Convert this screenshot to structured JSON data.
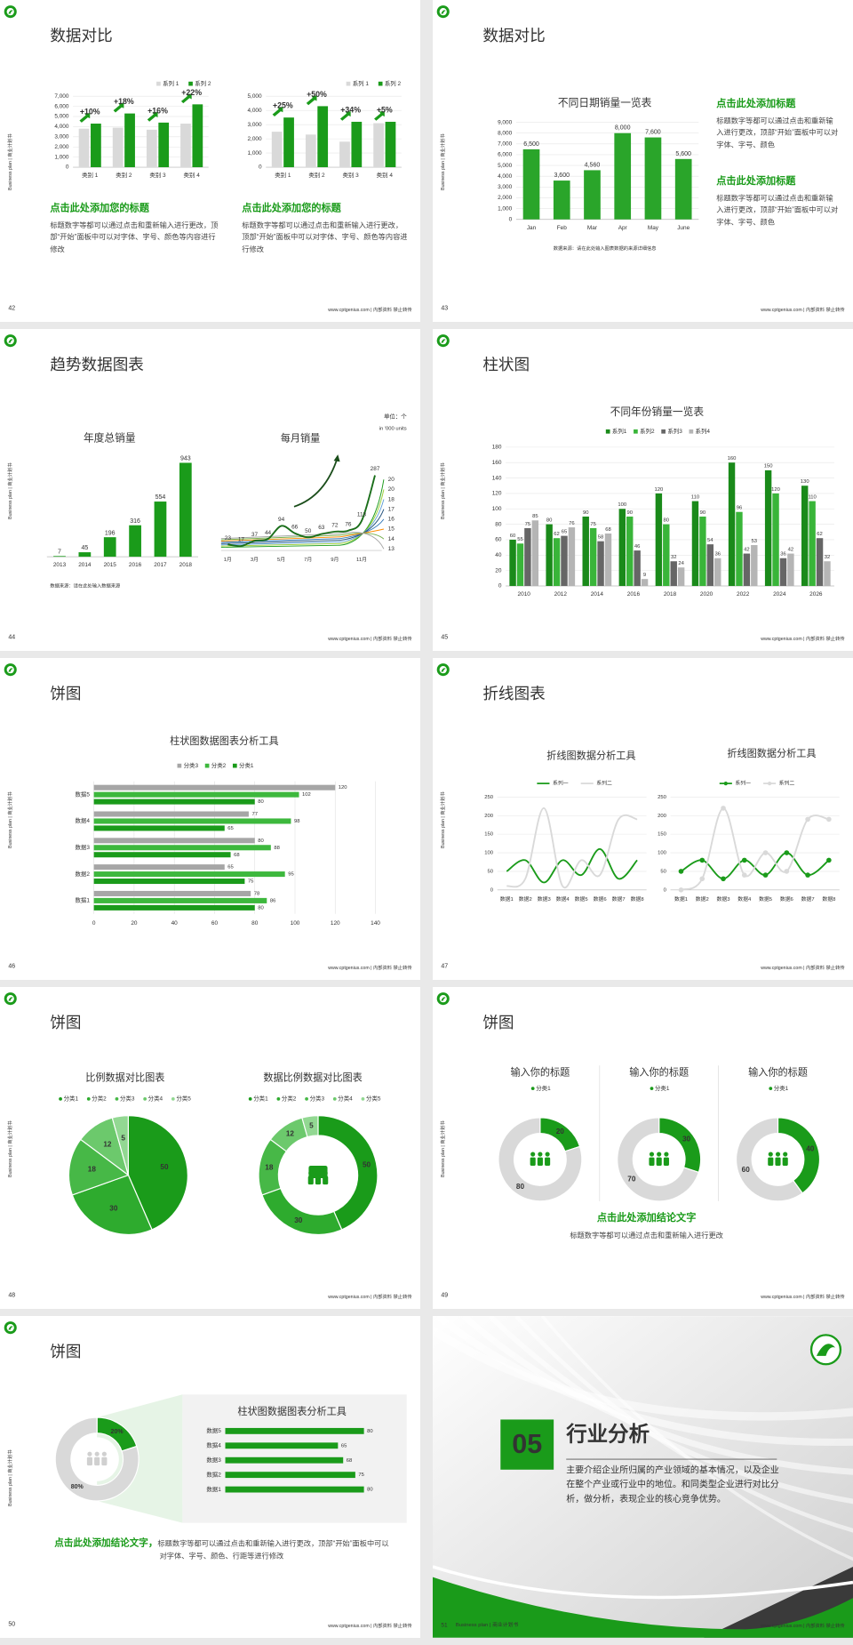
{
  "side_label": "Business plan | 商业计划书",
  "footer": "www.cptgenius.com | 内部资料 禁止转传",
  "slides": [
    {
      "number": "42",
      "title": "数据对比",
      "charts": [
        {
          "type": "bar",
          "categories": [
            "类别 1",
            "类别 2",
            "类别 3",
            "类别 4"
          ],
          "series": [
            {
              "name": "系列 1",
              "color": "#d9d9d9",
              "values": [
                3800,
                3900,
                3700,
                4300
              ]
            },
            {
              "name": "系列 2",
              "color": "#1a9b1a",
              "values": [
                4300,
                5300,
                4400,
                6200
              ]
            }
          ],
          "annotations": [
            "+10%",
            "+18%",
            "+16%",
            "+22%"
          ],
          "ylim": [
            0,
            7000
          ],
          "yticks": [
            0,
            {
              "value": 1000,
              "label": "1,000"
            },
            {
              "value": 2000,
              "label": "2,000"
            },
            {
              "value": 3000,
              "label": "3,000"
            },
            {
              "value": 4000,
              "label": "4,000"
            },
            {
              "value": 5000,
              "label": "5,000"
            },
            {
              "value": 6000,
              "label": "6,000"
            },
            {
              "value": 7000,
              "label": "7,000"
            }
          ],
          "grid": true
        },
        {
          "type": "bar",
          "categories": [
            "类别 1",
            "类别 2",
            "类别 3",
            "类别 4"
          ],
          "series": [
            {
              "name": "系列 1",
              "color": "#d9d9d9",
              "values": [
                2500,
                2300,
                1800,
                3100
              ]
            },
            {
              "name": "系列 2",
              "color": "#1a9b1a",
              "values": [
                3500,
                4300,
                3200,
                3200
              ]
            }
          ],
          "annotations": [
            "+25%",
            "+50%",
            "+34%",
            "+5%"
          ],
          "ylim": [
            0,
            5000
          ],
          "yticks": [
            0,
            {
              "value": 1000,
              "label": "1,000"
            },
            {
              "value": 2000,
              "label": "2,000"
            },
            {
              "value": 3000,
              "label": "3,000"
            },
            {
              "value": 4000,
              "label": "4,000"
            },
            {
              "value": 5000,
              "label": "5,000"
            }
          ],
          "grid": true
        }
      ],
      "blocks": [
        {
          "heading": "点击此处添加您的标题",
          "body": "标题数字等都可以通过点击和重新输入进行更改，顶部“开始”面板中可以对字体、字号、颜色等内容进行修改"
        },
        {
          "heading": "点击此处添加您的标题",
          "body": "标题数字等都可以通过点击和重新输入进行更改，顶部“开始”面板中可以对字体、字号、颜色等内容进行修改"
        }
      ]
    },
    {
      "number": "43",
      "title": "数据对比",
      "charts": [
        {
          "type": "bar",
          "title": "不同日期销量一览表",
          "categories": [
            "Jan",
            "Feb",
            "Mar",
            "Apr",
            "May",
            "June"
          ],
          "values": [
            6500,
            3600,
            4560,
            8000,
            7600,
            5600
          ],
          "value_labels": [
            "6,500",
            "3,600",
            "4,560",
            "8,000",
            "7,600",
            "5,600"
          ],
          "color": "#2aa52a",
          "ylim": [
            0,
            9000
          ],
          "yticks": [
            0,
            {
              "value": 1000,
              "label": "1,000"
            },
            {
              "value": 2000,
              "label": "2,000"
            },
            {
              "value": 3000,
              "label": "3,000"
            },
            {
              "value": 4000,
              "label": "4,000"
            },
            {
              "value": 5000,
              "label": "5,000"
            },
            {
              "value": 6000,
              "label": "6,000"
            },
            {
              "value": 7000,
              "label": "7,000"
            },
            {
              "value": 8000,
              "label": "8,000"
            },
            {
              "value": 9000,
              "label": "9,000"
            }
          ],
          "grid": true
        }
      ],
      "source": "数据来源：请在此处输入图表数据的来源详细信息",
      "blocks": [
        {
          "heading": "点击此处添加标题",
          "body": "标题数字等都可以通过点击和重新输入进行更改，顶部“开始”面板中可以对字体、字号、颜色"
        },
        {
          "heading": "点击此处添加标题",
          "body": "标题数字等都可以通过点击和重新输入进行更改，顶部“开始”面板中可以对字体、字号、颜色"
        }
      ]
    },
    {
      "number": "44",
      "title": "趋势数据图表",
      "unit": "单位：个",
      "unit_note": "in '000 units",
      "charts": [
        {
          "type": "bar",
          "title": "年度总销量",
          "categories": [
            "2013",
            "2014",
            "2015",
            "2016",
            "2017",
            "2018"
          ],
          "values": [
            7,
            45,
            196,
            316,
            554,
            943
          ],
          "color": "#1a9b1a",
          "show_values": true
        },
        {
          "type": "line",
          "title": "每月销量",
          "categories": [
            "1月",
            null,
            "3月",
            null,
            "5月",
            null,
            "7月",
            null,
            "9月",
            null,
            "11月",
            null
          ],
          "values": [
            23,
            17,
            37,
            44,
            94,
            66,
            50,
            63,
            72,
            76,
            113,
            287
          ],
          "color": "#1a6e1a",
          "smooth": true,
          "show_values": true,
          "end_values": [
            20,
            20,
            18,
            17,
            16,
            15,
            14,
            13
          ],
          "end_colors": [
            "#1a9b1a",
            "#9acd32",
            "#5b9bd5",
            "#1f4e79",
            "#2e75b6",
            "#ff8c00",
            "#70ad47",
            "#a5a5a5"
          ]
        }
      ],
      "source": "数据来源：请在此处输入数据来源"
    },
    {
      "number": "45",
      "title": "柱状图",
      "charts": [
        {
          "type": "bar",
          "title": "不同年份销量一览表",
          "categories": [
            "2010",
            "2012",
            "2014",
            "2016",
            "2018",
            "2020",
            "2022",
            "2024",
            "2026"
          ],
          "series": [
            {
              "name": "系列1",
              "color": "#1a8a1a",
              "values": [
                60,
                80,
                90,
                100,
                120,
                110,
                160,
                150,
                130
              ]
            },
            {
              "name": "系列2",
              "color": "#39b539",
              "values": [
                55,
                62,
                75,
                90,
                80,
                90,
                96,
                120,
                110
              ]
            },
            {
              "name": "系列3",
              "color": "#666666",
              "values": [
                75,
                65,
                58,
                46,
                32,
                54,
                42,
                36,
                62
              ]
            },
            {
              "name": "系列4",
              "color": "#b5b5b5",
              "values": [
                85,
                76,
                68,
                9,
                24,
                36,
                53,
                42,
                32
              ]
            }
          ],
          "show_values": true,
          "ylim": [
            0,
            180
          ],
          "yticks": [
            0,
            20,
            40,
            60,
            80,
            100,
            120,
            140,
            160,
            180
          ],
          "grid": true
        }
      ]
    },
    {
      "number": "46",
      "title": "饼图",
      "charts": [
        {
          "type": "hbar",
          "title": "柱状图数据图表分析工具",
          "categories": [
            "数据1",
            "数据2",
            "数据3",
            "数据4",
            "数据5"
          ],
          "series": [
            {
              "name": "分类3",
              "color": "#a6a6a6",
              "values": [
                78,
                65,
                80,
                77,
                120
              ]
            },
            {
              "name": "分类2",
              "color": "#3db83d",
              "values": [
                86,
                95,
                88,
                98,
                102
              ]
            },
            {
              "name": "分类1",
              "color": "#1a9b1a",
              "values": [
                80,
                75,
                68,
                65,
                80
              ]
            }
          ],
          "show_values": true,
          "xlim": [
            0,
            140
          ],
          "xticks": [
            0,
            20,
            40,
            60,
            80,
            100,
            120,
            140
          ],
          "grid": true
        }
      ]
    },
    {
      "number": "47",
      "title": "折线图表",
      "charts": [
        {
          "type": "line",
          "title": "折线图数据分析工具",
          "categories": [
            "数据1",
            "数据2",
            "数据3",
            "数据4",
            "数据5",
            "数据6",
            "数据7",
            "数据8"
          ],
          "series": [
            {
              "name": "系列一",
              "color": "#1a9b1a",
              "values": [
                50,
                80,
                20,
                80,
                40,
                110,
                30,
                80
              ]
            },
            {
              "name": "系列二",
              "color": "#d9d9d9",
              "values": [
                10,
                30,
                220,
                10,
                80,
                40,
                190,
                190
              ]
            }
          ],
          "smooth": true,
          "ylim": [
            0,
            250
          ],
          "yticks": [
            0,
            50,
            100,
            150,
            200,
            250
          ],
          "grid": true
        },
        {
          "type": "line",
          "title": "折线图数据分析工具",
          "categories": [
            "数据1",
            "数据2",
            "数据3",
            "数据4",
            "数据5",
            "数据6",
            "数据7",
            "数据8"
          ],
          "series": [
            {
              "name": "系列一",
              "color": "#1a9b1a",
              "values": [
                50,
                80,
                30,
                80,
                40,
                100,
                40,
                80
              ]
            },
            {
              "name": "系列二",
              "color": "#d9d9d9",
              "values": [
                0,
                30,
                220,
                40,
                100,
                50,
                190,
                190
              ]
            }
          ],
          "smooth": true,
          "markers": true,
          "ylim": [
            0,
            250
          ],
          "yticks": [
            0,
            50,
            100,
            150,
            200,
            250
          ],
          "grid": true
        }
      ]
    },
    {
      "number": "48",
      "title": "饼图",
      "charts": [
        {
          "type": "pie",
          "title": "比例数据对比图表",
          "categories": [
            "分类1",
            "分类2",
            "分类3",
            "分类4",
            "分类5"
          ],
          "values": [
            50,
            30,
            18,
            12,
            5
          ],
          "colors": [
            "#1a9b1a",
            "#2eab2e",
            "#47b847",
            "#6cc96c",
            "#92d892"
          ]
        },
        {
          "type": "donut",
          "title": "数据比例数据对比图表",
          "categories": [
            "分类1",
            "分类2",
            "分类3",
            "分类4",
            "分类5"
          ],
          "values": [
            50,
            30,
            18,
            12,
            5
          ],
          "colors": [
            "#1a9b1a",
            "#2eab2e",
            "#47b847",
            "#6cc96c",
            "#92d892"
          ]
        }
      ]
    },
    {
      "number": "49",
      "title": "饼图",
      "charts": [
        {
          "type": "donut",
          "title": "输入你的标题",
          "categories": [
            "分类1",
            null
          ],
          "values": [
            20,
            80
          ],
          "colors": [
            "#1a9b1a",
            "#d9d9d9"
          ]
        },
        {
          "type": "donut",
          "title": "输入你的标题",
          "categories": [
            "分类1",
            null
          ],
          "values": [
            30,
            70
          ],
          "colors": [
            "#1a9b1a",
            "#d9d9d9"
          ]
        },
        {
          "type": "donut",
          "title": "输入你的标题",
          "categories": [
            "分类1",
            null
          ],
          "values": [
            40,
            60
          ],
          "colors": [
            "#1a9b1a",
            "#d9d9d9"
          ]
        }
      ],
      "blocks": [
        {
          "heading": "点击此处添加结论文字",
          "body": "标题数字等都可以通过点击和重新输入进行更改"
        }
      ]
    },
    {
      "number": "50",
      "title": "饼图",
      "charts": [
        {
          "type": "donut",
          "values": [
            20,
            80
          ],
          "value_labels": [
            "20%",
            "80%"
          ],
          "colors": [
            "#1a9b1a",
            "#d9d9d9"
          ]
        },
        {
          "type": "hbar",
          "title": "柱状图数据图表分析工具",
          "categories": [
            "数据1",
            "数据2",
            "数据3",
            "数据4",
            "数据5"
          ],
          "values": [
            80,
            75,
            68,
            65,
            80
          ],
          "color": "#1a9b1a",
          "show_values": true
        }
      ],
      "blocks": [
        {
          "heading": "点击此处添加结论文字，",
          "body": "标题数字等都可以通过点击和重新输入进行更改，顶部“开始”面板中可以对字体、字号、颜色、行距等进行修改"
        }
      ]
    },
    {
      "number": "51",
      "section_number": "05",
      "section_title": "行业分析",
      "body": "主要介绍企业所归属的产业领域的基本情况，以及企业在整个产业或行业中的地位。和同类型企业进行对比分析，做分析，表现企业的核心竞争优势。"
    }
  ]
}
